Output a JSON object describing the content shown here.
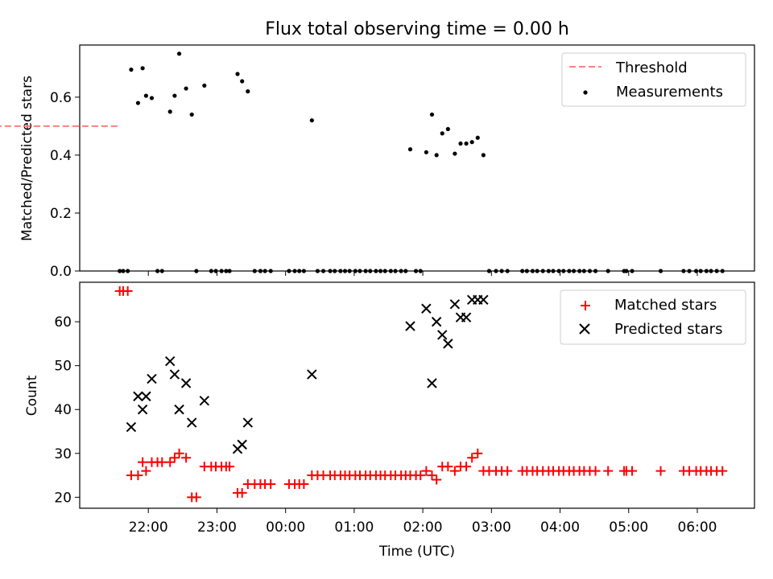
{
  "chart_data": [
    {
      "type": "scatter",
      "title": "Flux total observing time = 0.00 h",
      "xlabel": "",
      "ylabel": "Matched/Predicted stars",
      "ylim": [
        0,
        0.78
      ],
      "yticks": [
        "0.0",
        "0.2",
        "0.4",
        "0.6"
      ],
      "yticks_values": [
        0,
        0.2,
        0.4,
        0.6
      ],
      "legend": {
        "position": "top-right",
        "threshold_label": "Threshold",
        "measurements_label": "Measurements"
      },
      "threshold": {
        "y": 0.5,
        "x_start": "21:33",
        "x_end": "06:22",
        "color": "#ff7f7f"
      },
      "measurements_color": "#000000",
      "measurements": [
        [
          "21:35",
          0
        ],
        [
          "21:38",
          0
        ],
        [
          "21:42",
          0
        ],
        [
          "21:45",
          0.695
        ],
        [
          "21:51",
          0.58
        ],
        [
          "21:55",
          0.7
        ],
        [
          "21:58",
          0.605
        ],
        [
          "22:03",
          0.597
        ],
        [
          "22:08",
          0
        ],
        [
          "22:12",
          0
        ],
        [
          "22:19",
          0.55
        ],
        [
          "22:23",
          0.605
        ],
        [
          "22:27",
          0.75
        ],
        [
          "22:33",
          0.63
        ],
        [
          "22:38",
          0.54
        ],
        [
          "22:42",
          0
        ],
        [
          "22:49",
          0.64
        ],
        [
          "22:55",
          0
        ],
        [
          "22:59",
          0
        ],
        [
          "23:04",
          0
        ],
        [
          "23:08",
          0
        ],
        [
          "23:11",
          0
        ],
        [
          "23:18",
          0.68
        ],
        [
          "23:22",
          0.655
        ],
        [
          "23:27",
          0.62
        ],
        [
          "23:33",
          0
        ],
        [
          "23:38",
          0
        ],
        [
          "23:42",
          0
        ],
        [
          "23:47",
          0
        ],
        [
          "24:03",
          0
        ],
        [
          "24:08",
          0
        ],
        [
          "24:12",
          0
        ],
        [
          "24:16",
          0
        ],
        [
          "24:23",
          0.52
        ],
        [
          "24:28",
          0
        ],
        [
          "24:33",
          0
        ],
        [
          "24:39",
          0
        ],
        [
          "24:43",
          0
        ],
        [
          "24:48",
          0
        ],
        [
          "24:52",
          0
        ],
        [
          "24:56",
          0
        ],
        [
          "25:01",
          0
        ],
        [
          "25:05",
          0
        ],
        [
          "25:10",
          0
        ],
        [
          "25:14",
          0
        ],
        [
          "25:19",
          0
        ],
        [
          "25:23",
          0
        ],
        [
          "25:27",
          0
        ],
        [
          "25:32",
          0
        ],
        [
          "25:36",
          0
        ],
        [
          "25:41",
          0
        ],
        [
          "25:45",
          0
        ],
        [
          "25:49",
          0.42
        ],
        [
          "25:54",
          0
        ],
        [
          "25:58",
          0
        ],
        [
          "26:03",
          0.41
        ],
        [
          "26:08",
          0.54
        ],
        [
          "26:12",
          0.4
        ],
        [
          "26:17",
          0.475
        ],
        [
          "26:22",
          0.49
        ],
        [
          "26:28",
          0.405
        ],
        [
          "26:33",
          0.44
        ],
        [
          "26:38",
          0.44
        ],
        [
          "26:43",
          0.445
        ],
        [
          "26:48",
          0.46
        ],
        [
          "26:53",
          0.4
        ],
        [
          "26:58",
          0
        ],
        [
          "27:04",
          0
        ],
        [
          "27:09",
          0
        ],
        [
          "27:14",
          0
        ],
        [
          "27:27",
          0
        ],
        [
          "27:31",
          0
        ],
        [
          "27:36",
          0
        ],
        [
          "27:40",
          0
        ],
        [
          "27:45",
          0
        ],
        [
          "27:50",
          0
        ],
        [
          "27:54",
          0
        ],
        [
          "27:59",
          0
        ],
        [
          "28:03",
          0
        ],
        [
          "28:08",
          0
        ],
        [
          "28:12",
          0
        ],
        [
          "28:17",
          0
        ],
        [
          "28:21",
          0
        ],
        [
          "28:26",
          0
        ],
        [
          "28:31",
          0
        ],
        [
          "28:42",
          0
        ],
        [
          "28:56",
          0
        ],
        [
          "28:58",
          0
        ],
        [
          "29:03",
          0
        ],
        [
          "29:28",
          0
        ],
        [
          "29:48",
          0
        ],
        [
          "29:53",
          0
        ],
        [
          "29:59",
          0
        ],
        [
          "30:03",
          0
        ],
        [
          "30:08",
          0
        ],
        [
          "30:12",
          0
        ],
        [
          "30:17",
          0
        ],
        [
          "30:22",
          0
        ]
      ]
    },
    {
      "type": "scatter",
      "xlabel": "Time (UTC)",
      "ylabel": "Count",
      "ylim": [
        17.5,
        69
      ],
      "yticks": [
        "20",
        "30",
        "40",
        "50",
        "60"
      ],
      "yticks_values": [
        20,
        30,
        40,
        50,
        60
      ],
      "xlim": [
        "21:00",
        "30:50"
      ],
      "xticks": [
        "22:00",
        "23:00",
        "00:00",
        "01:00",
        "02:00",
        "03:00",
        "04:00",
        "05:00",
        "06:00"
      ],
      "xticks_values": [
        "22:00",
        "23:00",
        "24:00",
        "25:00",
        "26:00",
        "27:00",
        "28:00",
        "29:00",
        "30:00"
      ],
      "legend": {
        "position": "top-right",
        "matched_label": "Matched stars",
        "predicted_label": "Predicted stars"
      },
      "matched_color": "#ff0000",
      "predicted_color": "#000000",
      "matched": [
        [
          "21:35",
          67
        ],
        [
          "21:38",
          67
        ],
        [
          "21:42",
          67
        ],
        [
          "21:45",
          25
        ],
        [
          "21:51",
          25
        ],
        [
          "21:55",
          28
        ],
        [
          "21:58",
          26
        ],
        [
          "22:03",
          28
        ],
        [
          "22:08",
          28
        ],
        [
          "22:12",
          28
        ],
        [
          "22:19",
          28
        ],
        [
          "22:23",
          29
        ],
        [
          "22:27",
          30
        ],
        [
          "22:33",
          29
        ],
        [
          "22:38",
          20
        ],
        [
          "22:42",
          20
        ],
        [
          "22:49",
          27
        ],
        [
          "22:55",
          27
        ],
        [
          "22:59",
          27
        ],
        [
          "23:04",
          27
        ],
        [
          "23:08",
          27
        ],
        [
          "23:11",
          27
        ],
        [
          "23:18",
          21
        ],
        [
          "23:22",
          21
        ],
        [
          "23:27",
          23
        ],
        [
          "23:33",
          23
        ],
        [
          "23:38",
          23
        ],
        [
          "23:42",
          23
        ],
        [
          "23:47",
          23
        ],
        [
          "24:03",
          23
        ],
        [
          "24:08",
          23
        ],
        [
          "24:12",
          23
        ],
        [
          "24:16",
          23
        ],
        [
          "24:23",
          25
        ],
        [
          "24:28",
          25
        ],
        [
          "24:33",
          25
        ],
        [
          "24:39",
          25
        ],
        [
          "24:43",
          25
        ],
        [
          "24:48",
          25
        ],
        [
          "24:52",
          25
        ],
        [
          "24:56",
          25
        ],
        [
          "25:01",
          25
        ],
        [
          "25:05",
          25
        ],
        [
          "25:10",
          25
        ],
        [
          "25:14",
          25
        ],
        [
          "25:19",
          25
        ],
        [
          "25:23",
          25
        ],
        [
          "25:27",
          25
        ],
        [
          "25:32",
          25
        ],
        [
          "25:36",
          25
        ],
        [
          "25:41",
          25
        ],
        [
          "25:45",
          25
        ],
        [
          "25:49",
          25
        ],
        [
          "25:54",
          25
        ],
        [
          "25:58",
          25
        ],
        [
          "26:03",
          26
        ],
        [
          "26:08",
          25
        ],
        [
          "26:12",
          24
        ],
        [
          "26:17",
          27
        ],
        [
          "26:22",
          27
        ],
        [
          "26:28",
          26
        ],
        [
          "26:33",
          27
        ],
        [
          "26:38",
          27
        ],
        [
          "26:43",
          29
        ],
        [
          "26:48",
          30
        ],
        [
          "26:53",
          26
        ],
        [
          "26:58",
          26
        ],
        [
          "27:04",
          26
        ],
        [
          "27:09",
          26
        ],
        [
          "27:14",
          26
        ],
        [
          "27:27",
          26
        ],
        [
          "27:31",
          26
        ],
        [
          "27:36",
          26
        ],
        [
          "27:40",
          26
        ],
        [
          "27:45",
          26
        ],
        [
          "27:50",
          26
        ],
        [
          "27:54",
          26
        ],
        [
          "27:59",
          26
        ],
        [
          "28:03",
          26
        ],
        [
          "28:08",
          26
        ],
        [
          "28:12",
          26
        ],
        [
          "28:17",
          26
        ],
        [
          "28:21",
          26
        ],
        [
          "28:26",
          26
        ],
        [
          "28:31",
          26
        ],
        [
          "28:42",
          26
        ],
        [
          "28:56",
          26
        ],
        [
          "28:58",
          26
        ],
        [
          "29:03",
          26
        ],
        [
          "29:28",
          26
        ],
        [
          "29:48",
          26
        ],
        [
          "29:53",
          26
        ],
        [
          "29:59",
          26
        ],
        [
          "30:03",
          26
        ],
        [
          "30:08",
          26
        ],
        [
          "30:12",
          26
        ],
        [
          "30:17",
          26
        ],
        [
          "30:22",
          26
        ]
      ],
      "predicted": [
        [
          "21:45",
          36
        ],
        [
          "21:51",
          43
        ],
        [
          "21:55",
          40
        ],
        [
          "21:58",
          43
        ],
        [
          "22:03",
          47
        ],
        [
          "22:19",
          51
        ],
        [
          "22:23",
          48
        ],
        [
          "22:27",
          40
        ],
        [
          "22:33",
          46
        ],
        [
          "22:38",
          37
        ],
        [
          "22:49",
          42
        ],
        [
          "23:18",
          31
        ],
        [
          "23:22",
          32
        ],
        [
          "23:27",
          37
        ],
        [
          "24:23",
          48
        ],
        [
          "25:49",
          59
        ],
        [
          "26:03",
          63
        ],
        [
          "26:08",
          46
        ],
        [
          "26:12",
          60
        ],
        [
          "26:17",
          57
        ],
        [
          "26:22",
          55
        ],
        [
          "26:28",
          64
        ],
        [
          "26:33",
          61
        ],
        [
          "26:38",
          61
        ],
        [
          "26:43",
          65
        ],
        [
          "26:48",
          65
        ],
        [
          "26:53",
          65
        ]
      ]
    }
  ]
}
